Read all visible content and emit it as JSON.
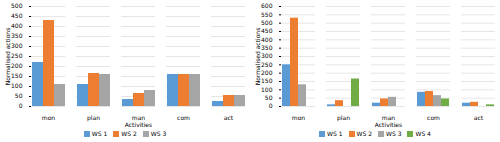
{
  "chart_data": [
    {
      "type": "bar",
      "xlabel": "Activities",
      "ylabel": "Normalised actions",
      "categories": [
        "mon",
        "plan",
        "man",
        "com",
        "act"
      ],
      "series": [
        {
          "name": "WS 1",
          "color": "#5b9bd5",
          "values": [
            220,
            110,
            35,
            160,
            25
          ]
        },
        {
          "name": "WS 2",
          "color": "#ed7d31",
          "values": [
            430,
            165,
            65,
            160,
            55
          ]
        },
        {
          "name": "WS 3",
          "color": "#a5a5a5",
          "values": [
            110,
            160,
            80,
            160,
            55
          ]
        }
      ],
      "ylim": [
        0,
        500
      ],
      "yticks": [
        0,
        50,
        100,
        150,
        200,
        250,
        300,
        350,
        400,
        450,
        500
      ],
      "grid": true,
      "legend": "bottom"
    },
    {
      "type": "bar",
      "xlabel": "Activities",
      "ylabel": "Normalised actions",
      "categories": [
        "mon",
        "plan",
        "man",
        "com",
        "act"
      ],
      "series": [
        {
          "name": "WS 1",
          "color": "#5b9bd5",
          "values": [
            250,
            10,
            20,
            85,
            20
          ]
        },
        {
          "name": "WS 2",
          "color": "#ed7d31",
          "values": [
            530,
            35,
            45,
            90,
            25
          ]
        },
        {
          "name": "WS 3",
          "color": "#a5a5a5",
          "values": [
            130,
            0,
            55,
            65,
            0
          ]
        },
        {
          "name": "WS 4",
          "color": "#70ad47",
          "values": [
            0,
            165,
            0,
            45,
            10
          ]
        }
      ],
      "ylim": [
        0,
        600
      ],
      "yticks": [
        0,
        50,
        100,
        150,
        200,
        250,
        300,
        350,
        400,
        450,
        500,
        550,
        600
      ],
      "grid": true,
      "legend": "bottom"
    }
  ]
}
